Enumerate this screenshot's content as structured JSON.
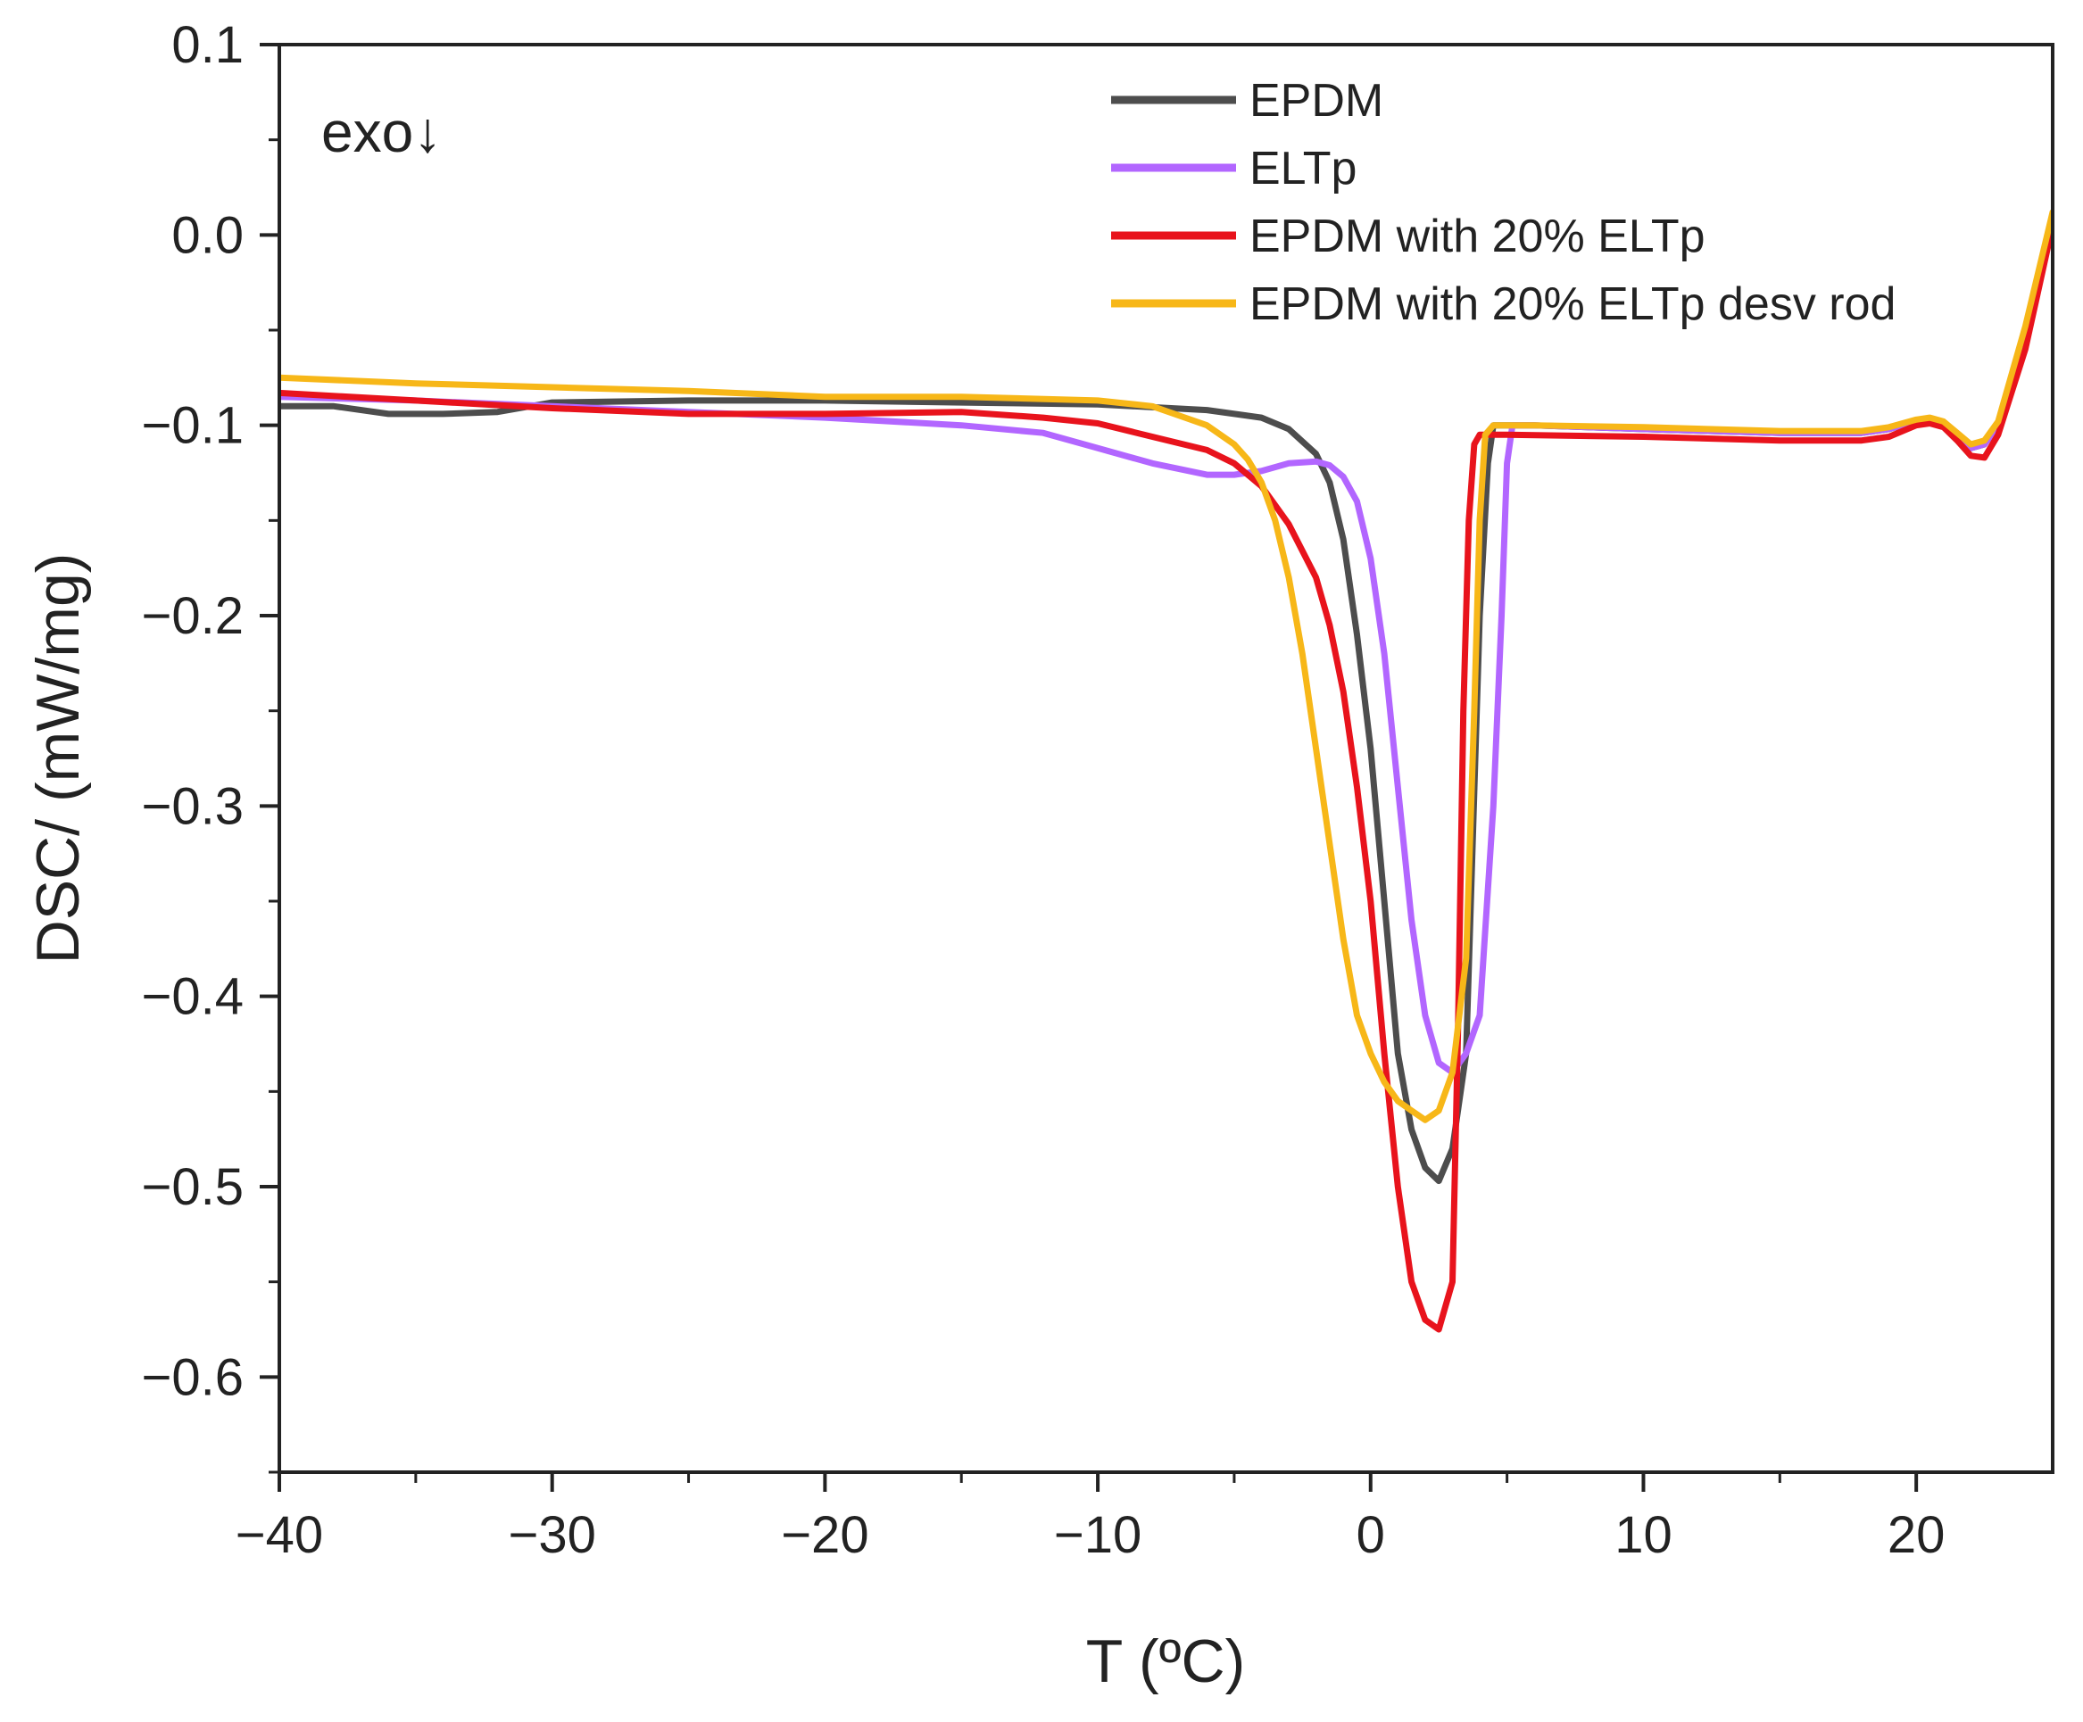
{
  "chart_data": {
    "type": "line",
    "title": "",
    "xlabel": "T (ºC)",
    "ylabel": "DSC/ (mW/mg)",
    "xlim": [
      -40,
      25
    ],
    "ylim": [
      -0.65,
      0.1
    ],
    "x_ticks": [
      -40,
      -30,
      -20,
      -10,
      0,
      10,
      20
    ],
    "x_tick_labels": [
      "−40",
      "−30",
      "−20",
      "−10",
      "0",
      "10",
      "20"
    ],
    "y_ticks": [
      0.1,
      0.0,
      -0.1,
      -0.2,
      -0.3,
      -0.4,
      -0.5,
      -0.6
    ],
    "y_tick_labels": [
      "0.1",
      "0.0",
      "−0.1",
      "−0.2",
      "−0.3",
      "−0.4",
      "−0.5",
      "−0.6"
    ],
    "grid": false,
    "legend_position": "top-right",
    "annotation": "exo↓",
    "series": [
      {
        "name": "EPDM",
        "color": "#4d4d4d",
        "x": [
          -40,
          -38,
          -36,
          -34,
          -32,
          -30,
          -25,
          -20,
          -15,
          -10,
          -6,
          -4,
          -3,
          -2,
          -1.5,
          -1,
          -0.5,
          0,
          0.5,
          1,
          1.5,
          2,
          2.5,
          3,
          3.5,
          4,
          4.3,
          4.5,
          6,
          10,
          15,
          18,
          19,
          20,
          20.5,
          21,
          21.5,
          22,
          22.5,
          23,
          24,
          25
        ],
        "y": [
          -0.09,
          -0.09,
          -0.094,
          -0.094,
          -0.093,
          -0.088,
          -0.087,
          -0.087,
          -0.088,
          -0.089,
          -0.092,
          -0.096,
          -0.102,
          -0.115,
          -0.13,
          -0.16,
          -0.21,
          -0.27,
          -0.35,
          -0.43,
          -0.47,
          -0.49,
          -0.497,
          -0.48,
          -0.43,
          -0.2,
          -0.12,
          -0.1,
          -0.1,
          -0.102,
          -0.104,
          -0.104,
          -0.102,
          -0.098,
          -0.097,
          -0.099,
          -0.105,
          -0.112,
          -0.11,
          -0.1,
          -0.05,
          0.01
        ]
      },
      {
        "name": "ELTp",
        "color": "#b266ff",
        "x": [
          -40,
          -35,
          -30,
          -25,
          -20,
          -15,
          -12,
          -10,
          -8,
          -6,
          -5,
          -4,
          -3,
          -2,
          -1.5,
          -1,
          -0.5,
          0,
          0.5,
          1,
          1.5,
          2,
          2.5,
          3,
          3.5,
          4,
          4.5,
          4.8,
          5,
          5.2,
          6,
          10,
          15,
          18,
          19,
          20,
          20.5,
          21,
          21.5,
          22,
          22.5,
          23,
          24,
          25
        ],
        "y": [
          -0.085,
          -0.087,
          -0.09,
          -0.093,
          -0.096,
          -0.1,
          -0.104,
          -0.112,
          -0.12,
          -0.126,
          -0.126,
          -0.124,
          -0.12,
          -0.119,
          -0.121,
          -0.127,
          -0.14,
          -0.17,
          -0.22,
          -0.29,
          -0.36,
          -0.41,
          -0.435,
          -0.44,
          -0.43,
          -0.41,
          -0.3,
          -0.2,
          -0.12,
          -0.1,
          -0.1,
          -0.102,
          -0.104,
          -0.104,
          -0.102,
          -0.098,
          -0.097,
          -0.099,
          -0.105,
          -0.112,
          -0.11,
          -0.1,
          -0.05,
          0.01
        ]
      },
      {
        "name": "EPDM with 20% ELTp",
        "color": "#e8131c",
        "x": [
          -40,
          -35,
          -30,
          -25,
          -20,
          -15,
          -12,
          -10,
          -8,
          -6,
          -5,
          -4,
          -3,
          -2,
          -1.5,
          -1,
          -0.5,
          0,
          0.5,
          1,
          1.5,
          2,
          2.5,
          3,
          3.2,
          3.4,
          3.6,
          3.8,
          4,
          5,
          10,
          15,
          18,
          19,
          20,
          20.5,
          21,
          21.5,
          22,
          22.5,
          23,
          24,
          25
        ],
        "y": [
          -0.083,
          -0.087,
          -0.091,
          -0.094,
          -0.094,
          -0.093,
          -0.096,
          -0.099,
          -0.106,
          -0.113,
          -0.12,
          -0.132,
          -0.152,
          -0.18,
          -0.205,
          -0.24,
          -0.29,
          -0.35,
          -0.43,
          -0.5,
          -0.55,
          -0.57,
          -0.575,
          -0.55,
          -0.42,
          -0.25,
          -0.15,
          -0.11,
          -0.105,
          -0.105,
          -0.106,
          -0.108,
          -0.108,
          -0.106,
          -0.1,
          -0.099,
          -0.101,
          -0.108,
          -0.116,
          -0.117,
          -0.105,
          -0.06,
          0.005
        ]
      },
      {
        "name": "EPDM with 20% ELTp desv rod",
        "color": "#f7b718",
        "x": [
          -40,
          -35,
          -30,
          -25,
          -20,
          -15,
          -10,
          -8,
          -7,
          -6,
          -5,
          -4.5,
          -4,
          -3.5,
          -3,
          -2.5,
          -2,
          -1.5,
          -1,
          -0.5,
          0,
          0.5,
          1,
          1.5,
          2,
          2.5,
          3,
          3.5,
          3.8,
          4,
          4.2,
          4.5,
          6,
          10,
          15,
          18,
          19,
          20,
          20.5,
          21,
          21.5,
          22,
          22.5,
          23,
          24,
          25
        ],
        "y": [
          -0.075,
          -0.078,
          -0.08,
          -0.082,
          -0.085,
          -0.085,
          -0.087,
          -0.09,
          -0.095,
          -0.1,
          -0.11,
          -0.118,
          -0.13,
          -0.15,
          -0.18,
          -0.22,
          -0.27,
          -0.32,
          -0.37,
          -0.41,
          -0.43,
          -0.445,
          -0.455,
          -0.46,
          -0.465,
          -0.46,
          -0.44,
          -0.38,
          -0.25,
          -0.15,
          -0.105,
          -0.1,
          -0.1,
          -0.101,
          -0.103,
          -0.103,
          -0.101,
          -0.097,
          -0.096,
          -0.098,
          -0.104,
          -0.11,
          -0.108,
          -0.098,
          -0.048,
          0.012
        ]
      }
    ]
  }
}
